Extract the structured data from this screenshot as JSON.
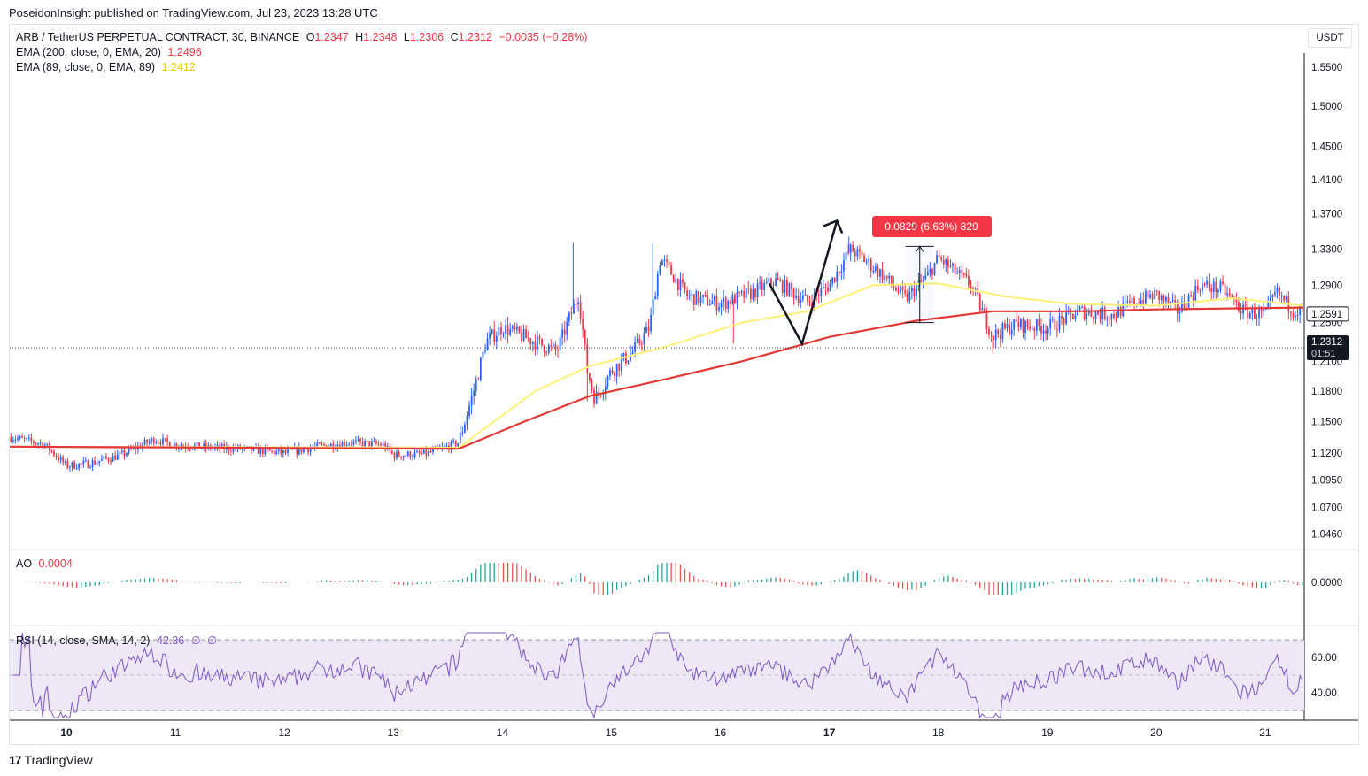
{
  "publisher_line": "PoseidonInsight published on TradingView.com, Jul 23, 2023 13:28 UTC",
  "brand": {
    "logo_text": "TradingView",
    "logo_mark": "17"
  },
  "unit_button": "USDT",
  "legend": {
    "symbol": "ARB / TetherUS PERPETUAL CONTRACT, 30, BINANCE",
    "open_label": "O",
    "open": "1.2347",
    "high_label": "H",
    "high": "1.2348",
    "low_label": "L",
    "low": "1.2306",
    "close_label": "C",
    "close": "1.2312",
    "change": "−0.0035 (−0.28%)",
    "ema200_label": "EMA (200, close, 0, EMA, 20)",
    "ema200_value": "1.2496",
    "ema89_label": "EMA (89, close, 0, EMA, 89)",
    "ema89_value": "1.2412"
  },
  "ao_legend": {
    "label": "AO",
    "value": "0.0004"
  },
  "rsi_legend": {
    "label": "RSI (14, close, SMA, 14, 2)",
    "value": "42.36",
    "extra1": "∅",
    "extra2": "∅"
  },
  "colors": {
    "up": "#2962ff",
    "down": "#f23645",
    "ema200": "#e53935",
    "ema89": "#fff176",
    "rsi": "#7e57c2",
    "rsi_band": "#ede7f6",
    "ao_up": "#26a69a",
    "ao_down": "#ef5350",
    "label_bg": "#f23645",
    "price_tag": "#131722"
  },
  "chart_data": {
    "type": "candlestick",
    "price_axis": {
      "ticks": [
        "1.5500",
        "1.5000",
        "1.4500",
        "1.4100",
        "1.3700",
        "1.3300",
        "1.2900",
        "1.2500",
        "1.2100",
        "1.1800",
        "1.1500",
        "1.1200",
        "1.0950",
        "1.0700",
        "1.0460"
      ],
      "tick_values": [
        1.55,
        1.5,
        1.45,
        1.41,
        1.37,
        1.33,
        1.29,
        1.25,
        1.21,
        1.18,
        1.15,
        1.12,
        1.095,
        1.07,
        1.046
      ],
      "scale": "log"
    },
    "time_axis": {
      "ticks": [
        "10",
        "11",
        "12",
        "13",
        "14",
        "15",
        "16",
        "17",
        "18",
        "19",
        "20",
        "21"
      ],
      "bold_ticks": [
        "10",
        "17"
      ],
      "range_days": [
        9.48,
        21.35
      ]
    },
    "last_price_tag": "1.2591",
    "current_price_tag": {
      "price": "1.2312",
      "countdown": "01:51"
    },
    "close_trend": [
      [
        9.5,
        1.135
      ],
      [
        9.8,
        1.128
      ],
      [
        10.0,
        1.108
      ],
      [
        10.2,
        1.11
      ],
      [
        10.5,
        1.118
      ],
      [
        10.8,
        1.133
      ],
      [
        11.0,
        1.128
      ],
      [
        11.3,
        1.125
      ],
      [
        11.6,
        1.124
      ],
      [
        12.0,
        1.12
      ],
      [
        12.3,
        1.126
      ],
      [
        12.6,
        1.13
      ],
      [
        12.9,
        1.128
      ],
      [
        13.0,
        1.118
      ],
      [
        13.3,
        1.119
      ],
      [
        13.6,
        1.13
      ],
      [
        13.75,
        1.185
      ],
      [
        13.85,
        1.23
      ],
      [
        14.0,
        1.245
      ],
      [
        14.2,
        1.235
      ],
      [
        14.5,
        1.22
      ],
      [
        14.7,
        1.28
      ],
      [
        14.78,
        1.2
      ],
      [
        14.85,
        1.172
      ],
      [
        15.0,
        1.2
      ],
      [
        15.2,
        1.22
      ],
      [
        15.35,
        1.245
      ],
      [
        15.45,
        1.32
      ],
      [
        15.7,
        1.278
      ],
      [
        16.0,
        1.27
      ],
      [
        16.3,
        1.282
      ],
      [
        16.5,
        1.295
      ],
      [
        16.8,
        1.272
      ],
      [
        17.0,
        1.29
      ],
      [
        17.2,
        1.33
      ],
      [
        17.5,
        1.3
      ],
      [
        17.7,
        1.275
      ],
      [
        17.9,
        1.3
      ],
      [
        18.0,
        1.32
      ],
      [
        18.3,
        1.29
      ],
      [
        18.5,
        1.236
      ],
      [
        18.7,
        1.248
      ],
      [
        19.0,
        1.245
      ],
      [
        19.3,
        1.262
      ],
      [
        19.6,
        1.258
      ],
      [
        19.8,
        1.272
      ],
      [
        20.0,
        1.28
      ],
      [
        20.2,
        1.262
      ],
      [
        20.4,
        1.29
      ],
      [
        20.6,
        1.286
      ],
      [
        20.8,
        1.262
      ],
      [
        21.0,
        1.258
      ],
      [
        21.1,
        1.282
      ],
      [
        21.25,
        1.264
      ],
      [
        21.35,
        1.262
      ]
    ],
    "ema200": [
      [
        9.48,
        1.126
      ],
      [
        13.6,
        1.124
      ],
      [
        14.2,
        1.15
      ],
      [
        14.8,
        1.175
      ],
      [
        15.5,
        1.192
      ],
      [
        16.2,
        1.21
      ],
      [
        17.0,
        1.235
      ],
      [
        17.8,
        1.252
      ],
      [
        18.5,
        1.262
      ],
      [
        19.3,
        1.262
      ],
      [
        20.0,
        1.264
      ],
      [
        21.35,
        1.266
      ]
    ],
    "ema89": [
      [
        9.48,
        1.126
      ],
      [
        13.6,
        1.125
      ],
      [
        14.3,
        1.18
      ],
      [
        14.8,
        1.205
      ],
      [
        15.5,
        1.225
      ],
      [
        16.2,
        1.25
      ],
      [
        16.8,
        1.262
      ],
      [
        17.4,
        1.29
      ],
      [
        18.0,
        1.292
      ],
      [
        18.6,
        1.278
      ],
      [
        19.2,
        1.27
      ],
      [
        20.0,
        1.268
      ],
      [
        20.7,
        1.276
      ],
      [
        21.35,
        1.268
      ]
    ],
    "ao": {
      "ticks": [
        "0.0000"
      ],
      "zero": 0
    },
    "rsi": {
      "ticks": [
        "60.00",
        "40.00"
      ],
      "tick_values": [
        60,
        40
      ],
      "band": [
        30,
        70
      ],
      "mid": 50,
      "last": 42.36
    },
    "annotations": {
      "measure_label": "0.0829 (6.63%) 829",
      "measure_range": {
        "from_day": 17.7,
        "to_day": 17.96,
        "low": 1.25,
        "high": 1.333
      },
      "zigzag": [
        [
          16.45,
          1.292
        ],
        [
          16.75,
          1.228
        ],
        [
          17.07,
          1.362
        ]
      ]
    }
  }
}
